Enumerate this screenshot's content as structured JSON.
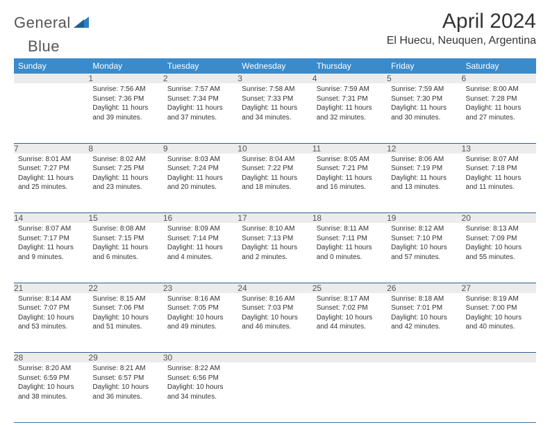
{
  "brand": {
    "name1": "General",
    "name2": "Blue"
  },
  "title": "April 2024",
  "location": "El Huecu, Neuquen, Argentina",
  "weekdays": [
    "Sunday",
    "Monday",
    "Tuesday",
    "Wednesday",
    "Thursday",
    "Friday",
    "Saturday"
  ],
  "colors": {
    "header_bg": "#3b8bca",
    "header_text": "#ffffff",
    "daynum_bg": "#ececec",
    "rule": "#2e5f8f",
    "brand_blue": "#2d7fc1"
  },
  "weeks": [
    [
      null,
      {
        "n": "1",
        "sr": "7:56 AM",
        "ss": "7:36 PM",
        "dl": "11 hours and 39 minutes."
      },
      {
        "n": "2",
        "sr": "7:57 AM",
        "ss": "7:34 PM",
        "dl": "11 hours and 37 minutes."
      },
      {
        "n": "3",
        "sr": "7:58 AM",
        "ss": "7:33 PM",
        "dl": "11 hours and 34 minutes."
      },
      {
        "n": "4",
        "sr": "7:59 AM",
        "ss": "7:31 PM",
        "dl": "11 hours and 32 minutes."
      },
      {
        "n": "5",
        "sr": "7:59 AM",
        "ss": "7:30 PM",
        "dl": "11 hours and 30 minutes."
      },
      {
        "n": "6",
        "sr": "8:00 AM",
        "ss": "7:28 PM",
        "dl": "11 hours and 27 minutes."
      }
    ],
    [
      {
        "n": "7",
        "sr": "8:01 AM",
        "ss": "7:27 PM",
        "dl": "11 hours and 25 minutes."
      },
      {
        "n": "8",
        "sr": "8:02 AM",
        "ss": "7:25 PM",
        "dl": "11 hours and 23 minutes."
      },
      {
        "n": "9",
        "sr": "8:03 AM",
        "ss": "7:24 PM",
        "dl": "11 hours and 20 minutes."
      },
      {
        "n": "10",
        "sr": "8:04 AM",
        "ss": "7:22 PM",
        "dl": "11 hours and 18 minutes."
      },
      {
        "n": "11",
        "sr": "8:05 AM",
        "ss": "7:21 PM",
        "dl": "11 hours and 16 minutes."
      },
      {
        "n": "12",
        "sr": "8:06 AM",
        "ss": "7:19 PM",
        "dl": "11 hours and 13 minutes."
      },
      {
        "n": "13",
        "sr": "8:07 AM",
        "ss": "7:18 PM",
        "dl": "11 hours and 11 minutes."
      }
    ],
    [
      {
        "n": "14",
        "sr": "8:07 AM",
        "ss": "7:17 PM",
        "dl": "11 hours and 9 minutes."
      },
      {
        "n": "15",
        "sr": "8:08 AM",
        "ss": "7:15 PM",
        "dl": "11 hours and 6 minutes."
      },
      {
        "n": "16",
        "sr": "8:09 AM",
        "ss": "7:14 PM",
        "dl": "11 hours and 4 minutes."
      },
      {
        "n": "17",
        "sr": "8:10 AM",
        "ss": "7:13 PM",
        "dl": "11 hours and 2 minutes."
      },
      {
        "n": "18",
        "sr": "8:11 AM",
        "ss": "7:11 PM",
        "dl": "11 hours and 0 minutes."
      },
      {
        "n": "19",
        "sr": "8:12 AM",
        "ss": "7:10 PM",
        "dl": "10 hours and 57 minutes."
      },
      {
        "n": "20",
        "sr": "8:13 AM",
        "ss": "7:09 PM",
        "dl": "10 hours and 55 minutes."
      }
    ],
    [
      {
        "n": "21",
        "sr": "8:14 AM",
        "ss": "7:07 PM",
        "dl": "10 hours and 53 minutes."
      },
      {
        "n": "22",
        "sr": "8:15 AM",
        "ss": "7:06 PM",
        "dl": "10 hours and 51 minutes."
      },
      {
        "n": "23",
        "sr": "8:16 AM",
        "ss": "7:05 PM",
        "dl": "10 hours and 49 minutes."
      },
      {
        "n": "24",
        "sr": "8:16 AM",
        "ss": "7:03 PM",
        "dl": "10 hours and 46 minutes."
      },
      {
        "n": "25",
        "sr": "8:17 AM",
        "ss": "7:02 PM",
        "dl": "10 hours and 44 minutes."
      },
      {
        "n": "26",
        "sr": "8:18 AM",
        "ss": "7:01 PM",
        "dl": "10 hours and 42 minutes."
      },
      {
        "n": "27",
        "sr": "8:19 AM",
        "ss": "7:00 PM",
        "dl": "10 hours and 40 minutes."
      }
    ],
    [
      {
        "n": "28",
        "sr": "8:20 AM",
        "ss": "6:59 PM",
        "dl": "10 hours and 38 minutes."
      },
      {
        "n": "29",
        "sr": "8:21 AM",
        "ss": "6:57 PM",
        "dl": "10 hours and 36 minutes."
      },
      {
        "n": "30",
        "sr": "8:22 AM",
        "ss": "6:56 PM",
        "dl": "10 hours and 34 minutes."
      },
      null,
      null,
      null,
      null
    ]
  ],
  "labels": {
    "sunrise": "Sunrise:",
    "sunset": "Sunset:",
    "daylight": "Daylight:"
  }
}
